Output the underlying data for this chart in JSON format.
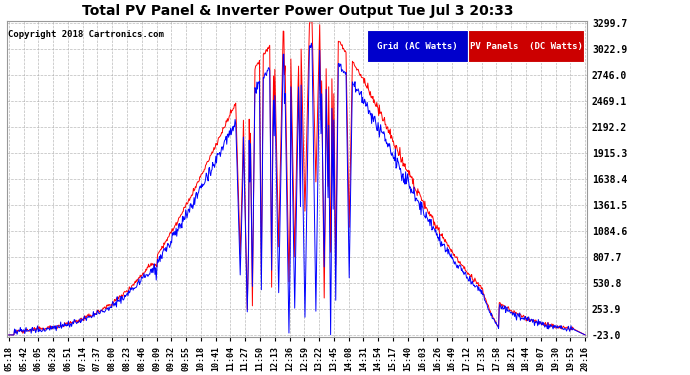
{
  "title": "Total PV Panel & Inverter Power Output Tue Jul 3 20:33",
  "copyright": "Copyright 2018 Cartronics.com",
  "legend_labels": [
    "Grid (AC Watts)",
    "PV Panels  (DC Watts)"
  ],
  "legend_bg_colors": [
    "#0000cc",
    "#cc0000"
  ],
  "line_colors": [
    "#0000ff",
    "#ff0000"
  ],
  "background_color": "#ffffff",
  "plot_bg_color": "#ffffff",
  "grid_color": "#aaaaaa",
  "title_color": "#000000",
  "tick_label_color": "#000000",
  "copyright_color": "#000000",
  "yticks": [
    -23.0,
    253.9,
    530.8,
    807.7,
    1084.6,
    1361.5,
    1638.4,
    1915.3,
    2192.2,
    2469.1,
    2746.0,
    3022.9,
    3299.7
  ],
  "ymin": -23.0,
  "ymax": 3299.7,
  "xtick_labels": [
    "05:18",
    "05:42",
    "06:05",
    "06:28",
    "06:51",
    "07:14",
    "07:37",
    "08:00",
    "08:23",
    "08:46",
    "09:09",
    "09:32",
    "09:55",
    "10:18",
    "10:41",
    "11:04",
    "11:27",
    "11:50",
    "12:13",
    "12:36",
    "12:59",
    "13:22",
    "13:45",
    "14:08",
    "14:31",
    "14:54",
    "15:17",
    "15:40",
    "16:03",
    "16:26",
    "16:49",
    "17:12",
    "17:35",
    "17:58",
    "18:21",
    "18:44",
    "19:07",
    "19:30",
    "19:53",
    "20:16"
  ],
  "n_points": 900,
  "figwidth": 6.9,
  "figheight": 3.75,
  "dpi": 100
}
